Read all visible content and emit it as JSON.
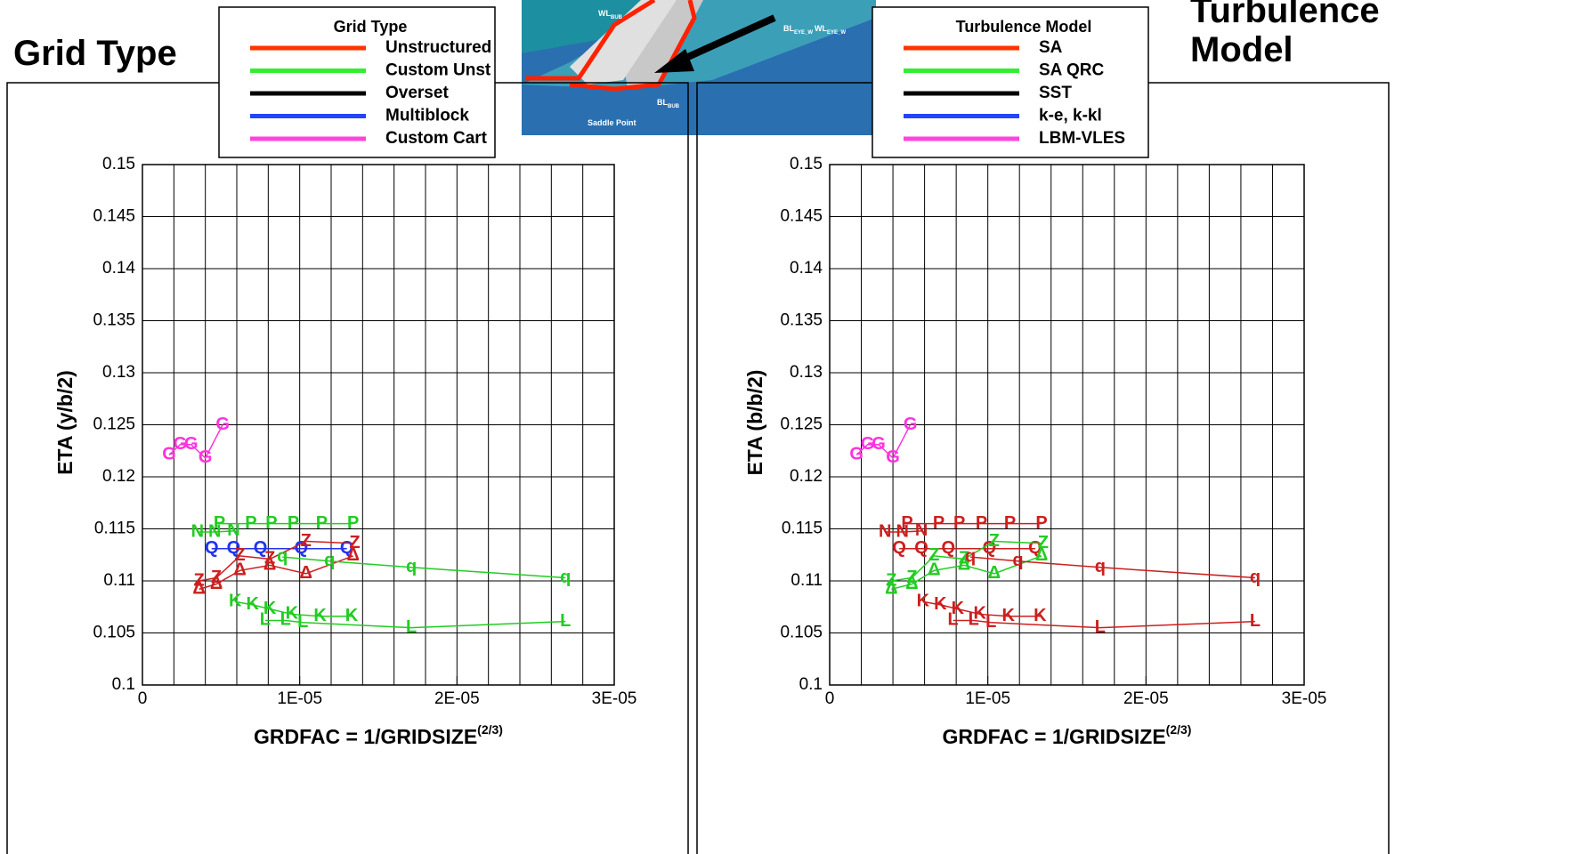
{
  "inset_labels": [
    {
      "text": "WL",
      "sub": "BUB"
    },
    {
      "text": "BL",
      "sub": "BUB"
    },
    {
      "text": "Saddle Point"
    },
    {
      "text": "BL",
      "sub": "EYE_W"
    },
    {
      "text": "WL",
      "sub": "EYE_W"
    }
  ],
  "chart_data": [
    {
      "type": "line",
      "title": "Grid Type",
      "legend_title": "Grid Type",
      "legend": [
        {
          "name": "Unstructured",
          "color": "#ff3300"
        },
        {
          "name": "Custom Unst",
          "color": "#33ee33"
        },
        {
          "name": "Overset",
          "color": "#000000"
        },
        {
          "name": "Multiblock",
          "color": "#2244ff"
        },
        {
          "name": "Custom Cart",
          "color": "#ff44dd"
        }
      ],
      "x_label": "GRDFAC = 1/GRIDSIZE",
      "x_label_superscript": "(2/3)",
      "y_label": "ETA (y/b/2)",
      "xlim": [
        0,
        3e-05
      ],
      "ylim": [
        0.1,
        0.15
      ],
      "xticks": [
        0,
        {
          "value": 1e-05,
          "label": "1E-05"
        },
        {
          "value": 2e-05,
          "label": "2E-05"
        },
        {
          "value": 3e-05,
          "label": "3E-05"
        }
      ],
      "xgrid": [
        2e-06,
        4e-06,
        6e-06,
        8e-06,
        1e-05,
        1.2e-05,
        1.4e-05,
        1.6e-05,
        1.8e-05,
        2e-05,
        2.2e-05,
        2.4e-05,
        2.6e-05,
        2.8e-05
      ],
      "yticks": [
        0.1,
        0.105,
        0.11,
        0.115,
        0.12,
        0.125,
        0.13,
        0.135,
        0.14,
        0.145,
        0.15
      ],
      "grid": true,
      "series": [
        {
          "marker": "G",
          "color": "#ff33dd",
          "x": [
            1.7e-06,
            2.4e-06,
            3.1e-06,
            4e-06,
            5.1e-06
          ],
          "values": [
            0.1221,
            0.1231,
            0.1231,
            0.1218,
            0.125
          ]
        },
        {
          "marker": "P",
          "color": "#22cc22",
          "x": [
            4.9e-06,
            6.9e-06,
            8.2e-06,
            9.6e-06,
            1.14e-05,
            1.34e-05
          ],
          "values": [
            0.1155,
            0.1155,
            0.1155,
            0.1155,
            0.1155,
            0.1155
          ]
        },
        {
          "marker": "N",
          "color": "#22cc22",
          "x": [
            3.5e-06,
            4.6e-06,
            5.8e-06
          ],
          "values": [
            0.1147,
            0.1147,
            0.1148
          ]
        },
        {
          "marker": "Q",
          "color": "#2233ee",
          "x": [
            4.4e-06,
            5.8e-06,
            7.5e-06,
            1.01e-05,
            1.3e-05
          ],
          "values": [
            0.1131,
            0.1131,
            0.1131,
            0.1131,
            0.1131
          ]
        },
        {
          "marker": "Z",
          "color": "#cc1f1f",
          "x": [
            3.6e-06,
            4.7e-06,
            6.2e-06,
            8.1e-06,
            1.04e-05,
            1.35e-05
          ],
          "values": [
            0.11,
            0.1103,
            0.1124,
            0.1121,
            0.1138,
            0.1136
          ]
        },
        {
          "marker": "Δ",
          "color": "#cc1f1f",
          "x": [
            3.6e-06,
            4.7e-06,
            6.2e-06,
            8.1e-06,
            1.04e-05,
            1.34e-05
          ],
          "values": [
            0.1092,
            0.1097,
            0.111,
            0.1115,
            0.1107,
            0.1124
          ]
        },
        {
          "marker": "q",
          "color": "#22cc22",
          "x": [
            8.9e-06,
            1.19e-05,
            1.71e-05,
            2.69e-05
          ],
          "values": [
            0.1123,
            0.1119,
            0.1113,
            0.1103
          ]
        },
        {
          "marker": "K",
          "color": "#22cc22",
          "x": [
            5.9e-06,
            7e-06,
            8.1e-06,
            9.5e-06,
            1.13e-05,
            1.33e-05
          ],
          "values": [
            0.108,
            0.1077,
            0.1073,
            0.1068,
            0.1066,
            0.1066
          ]
        },
        {
          "marker": "L",
          "color": "#22cc22",
          "x": [
            7.8e-06,
            9.1e-06,
            1.02e-05,
            1.71e-05,
            2.69e-05
          ],
          "values": [
            0.1062,
            0.1062,
            0.106,
            0.1055,
            0.1061
          ]
        }
      ]
    },
    {
      "type": "line",
      "title": "Turbulence Model",
      "legend_title": "Turbulence Model",
      "legend": [
        {
          "name": "SA",
          "color": "#ff3300"
        },
        {
          "name": "SA QRC",
          "color": "#33ee33"
        },
        {
          "name": "SST",
          "color": "#000000"
        },
        {
          "name": "k-e, k-kl",
          "color": "#2244ff"
        },
        {
          "name": "LBM-VLES",
          "color": "#ff44dd"
        }
      ],
      "x_label": "GRDFAC = 1/GRIDSIZE",
      "x_label_superscript": "(2/3)",
      "y_label": "ETA (b/b/2)",
      "xlim": [
        0,
        3e-05
      ],
      "ylim": [
        0.1,
        0.15
      ],
      "xticks": [
        0,
        {
          "value": 1e-05,
          "label": "1E-05"
        },
        {
          "value": 2e-05,
          "label": "2E-05"
        },
        {
          "value": 3e-05,
          "label": "3E-05"
        }
      ],
      "xgrid": [
        2e-06,
        4e-06,
        6e-06,
        8e-06,
        1e-05,
        1.2e-05,
        1.4e-05,
        1.6e-05,
        1.8e-05,
        2e-05,
        2.2e-05,
        2.4e-05,
        2.6e-05,
        2.8e-05
      ],
      "yticks": [
        0.1,
        0.105,
        0.11,
        0.115,
        0.12,
        0.125,
        0.13,
        0.135,
        0.14,
        0.145,
        0.15
      ],
      "grid": true,
      "series": [
        {
          "marker": "G",
          "color": "#ff33dd",
          "x": [
            1.7e-06,
            2.4e-06,
            3.1e-06,
            4e-06,
            5.1e-06
          ],
          "values": [
            0.1221,
            0.1231,
            0.1231,
            0.1218,
            0.125
          ]
        },
        {
          "marker": "P",
          "color": "#cc1f1f",
          "x": [
            4.9e-06,
            6.9e-06,
            8.2e-06,
            9.6e-06,
            1.14e-05,
            1.34e-05
          ],
          "values": [
            0.1155,
            0.1155,
            0.1155,
            0.1155,
            0.1155,
            0.1155
          ]
        },
        {
          "marker": "N",
          "color": "#cc1f1f",
          "x": [
            3.5e-06,
            4.6e-06,
            5.8e-06
          ],
          "values": [
            0.1147,
            0.1147,
            0.1148
          ]
        },
        {
          "marker": "Q",
          "color": "#cc1f1f",
          "x": [
            4.4e-06,
            5.8e-06,
            7.5e-06,
            1.01e-05,
            1.3e-05
          ],
          "values": [
            0.1131,
            0.1131,
            0.1131,
            0.1131,
            0.1131
          ]
        },
        {
          "marker": "Z",
          "color": "#22cc22",
          "x": [
            3.9e-06,
            5.2e-06,
            6.6e-06,
            8.5e-06,
            1.04e-05,
            1.35e-05
          ],
          "values": [
            0.11,
            0.1103,
            0.1124,
            0.1121,
            0.1138,
            0.1136
          ]
        },
        {
          "marker": "Δ",
          "color": "#22cc22",
          "x": [
            3.9e-06,
            5.2e-06,
            6.6e-06,
            8.5e-06,
            1.04e-05,
            1.34e-05
          ],
          "values": [
            0.1092,
            0.1097,
            0.111,
            0.1115,
            0.1107,
            0.1124
          ]
        },
        {
          "marker": "q",
          "color": "#cc1f1f",
          "x": [
            8.9e-06,
            1.19e-05,
            1.71e-05,
            2.69e-05
          ],
          "values": [
            0.1123,
            0.1119,
            0.1113,
            0.1103
          ]
        },
        {
          "marker": "K",
          "color": "#cc1f1f",
          "x": [
            5.9e-06,
            7e-06,
            8.1e-06,
            9.5e-06,
            1.13e-05,
            1.33e-05
          ],
          "values": [
            0.108,
            0.1077,
            0.1073,
            0.1068,
            0.1066,
            0.1066
          ]
        },
        {
          "marker": "L",
          "color": "#cc1f1f",
          "x": [
            7.8e-06,
            9.1e-06,
            1.02e-05,
            1.71e-05,
            2.69e-05
          ],
          "values": [
            0.1062,
            0.1062,
            0.106,
            0.1055,
            0.1061
          ]
        }
      ]
    }
  ]
}
